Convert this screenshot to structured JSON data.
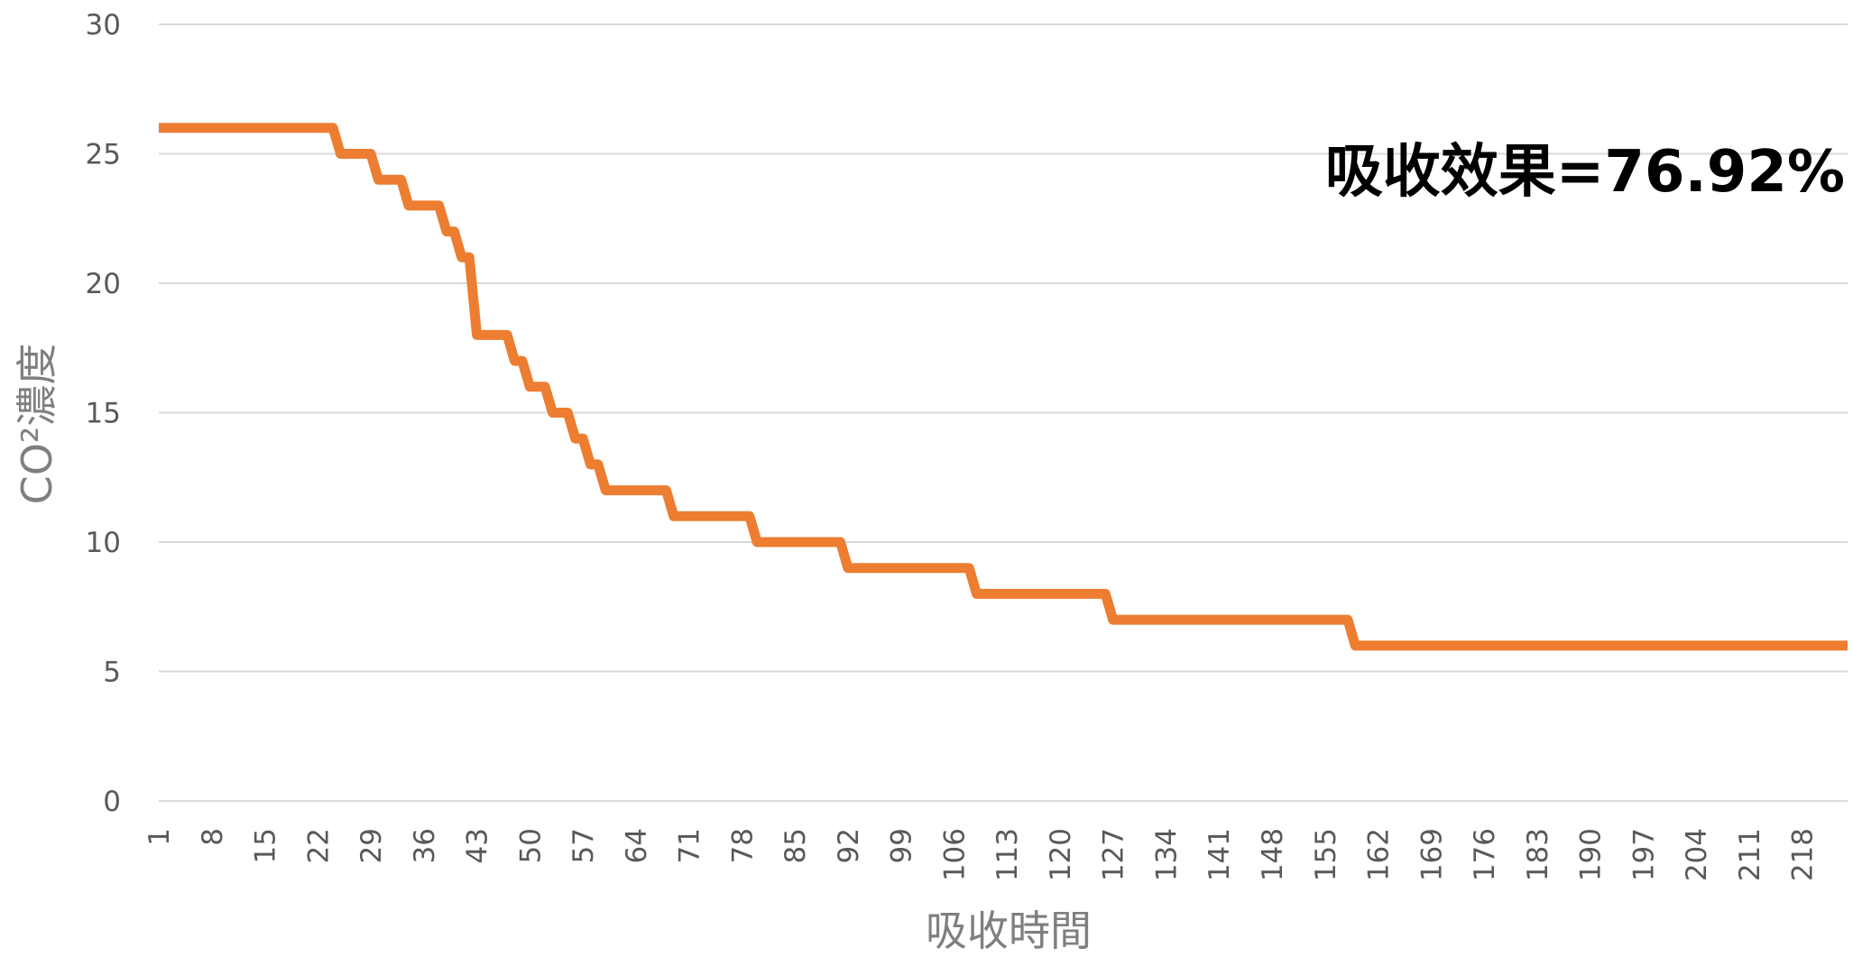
{
  "chart_data": {
    "type": "line",
    "title": "",
    "xlabel": "吸收時間",
    "ylabel": "CO²濃度",
    "annotation": "吸收效果=76.92%",
    "ylim": [
      0,
      30
    ],
    "yticks": [
      0,
      5,
      10,
      15,
      20,
      25,
      30
    ],
    "xlim": [
      1,
      224
    ],
    "xticks": [
      1,
      8,
      15,
      22,
      29,
      36,
      43,
      50,
      57,
      64,
      71,
      78,
      85,
      92,
      99,
      106,
      113,
      120,
      127,
      134,
      141,
      148,
      155,
      162,
      169,
      176,
      183,
      190,
      197,
      204,
      211,
      218
    ],
    "grid": true,
    "legend": "none",
    "series": [
      {
        "color": "#ed7d31",
        "steps": [
          {
            "from": 1,
            "to": 24,
            "value": 26
          },
          {
            "from": 25,
            "to": 29,
            "value": 25
          },
          {
            "from": 30,
            "to": 33,
            "value": 24
          },
          {
            "from": 34,
            "to": 38,
            "value": 23
          },
          {
            "from": 39,
            "to": 40,
            "value": 22
          },
          {
            "from": 41,
            "to": 42,
            "value": 21
          },
          {
            "from": 43,
            "to": 47,
            "value": 18
          },
          {
            "from": 48,
            "to": 49,
            "value": 17
          },
          {
            "from": 50,
            "to": 52,
            "value": 16
          },
          {
            "from": 53,
            "to": 55,
            "value": 15
          },
          {
            "from": 56,
            "to": 57,
            "value": 14
          },
          {
            "from": 58,
            "to": 59,
            "value": 13
          },
          {
            "from": 60,
            "to": 68,
            "value": 12
          },
          {
            "from": 69,
            "to": 79,
            "value": 11
          },
          {
            "from": 80,
            "to": 91,
            "value": 10
          },
          {
            "from": 92,
            "to": 108,
            "value": 9
          },
          {
            "from": 109,
            "to": 126,
            "value": 8
          },
          {
            "from": 127,
            "to": 158,
            "value": 7
          },
          {
            "from": 159,
            "to": 224,
            "value": 6
          }
        ]
      }
    ]
  }
}
